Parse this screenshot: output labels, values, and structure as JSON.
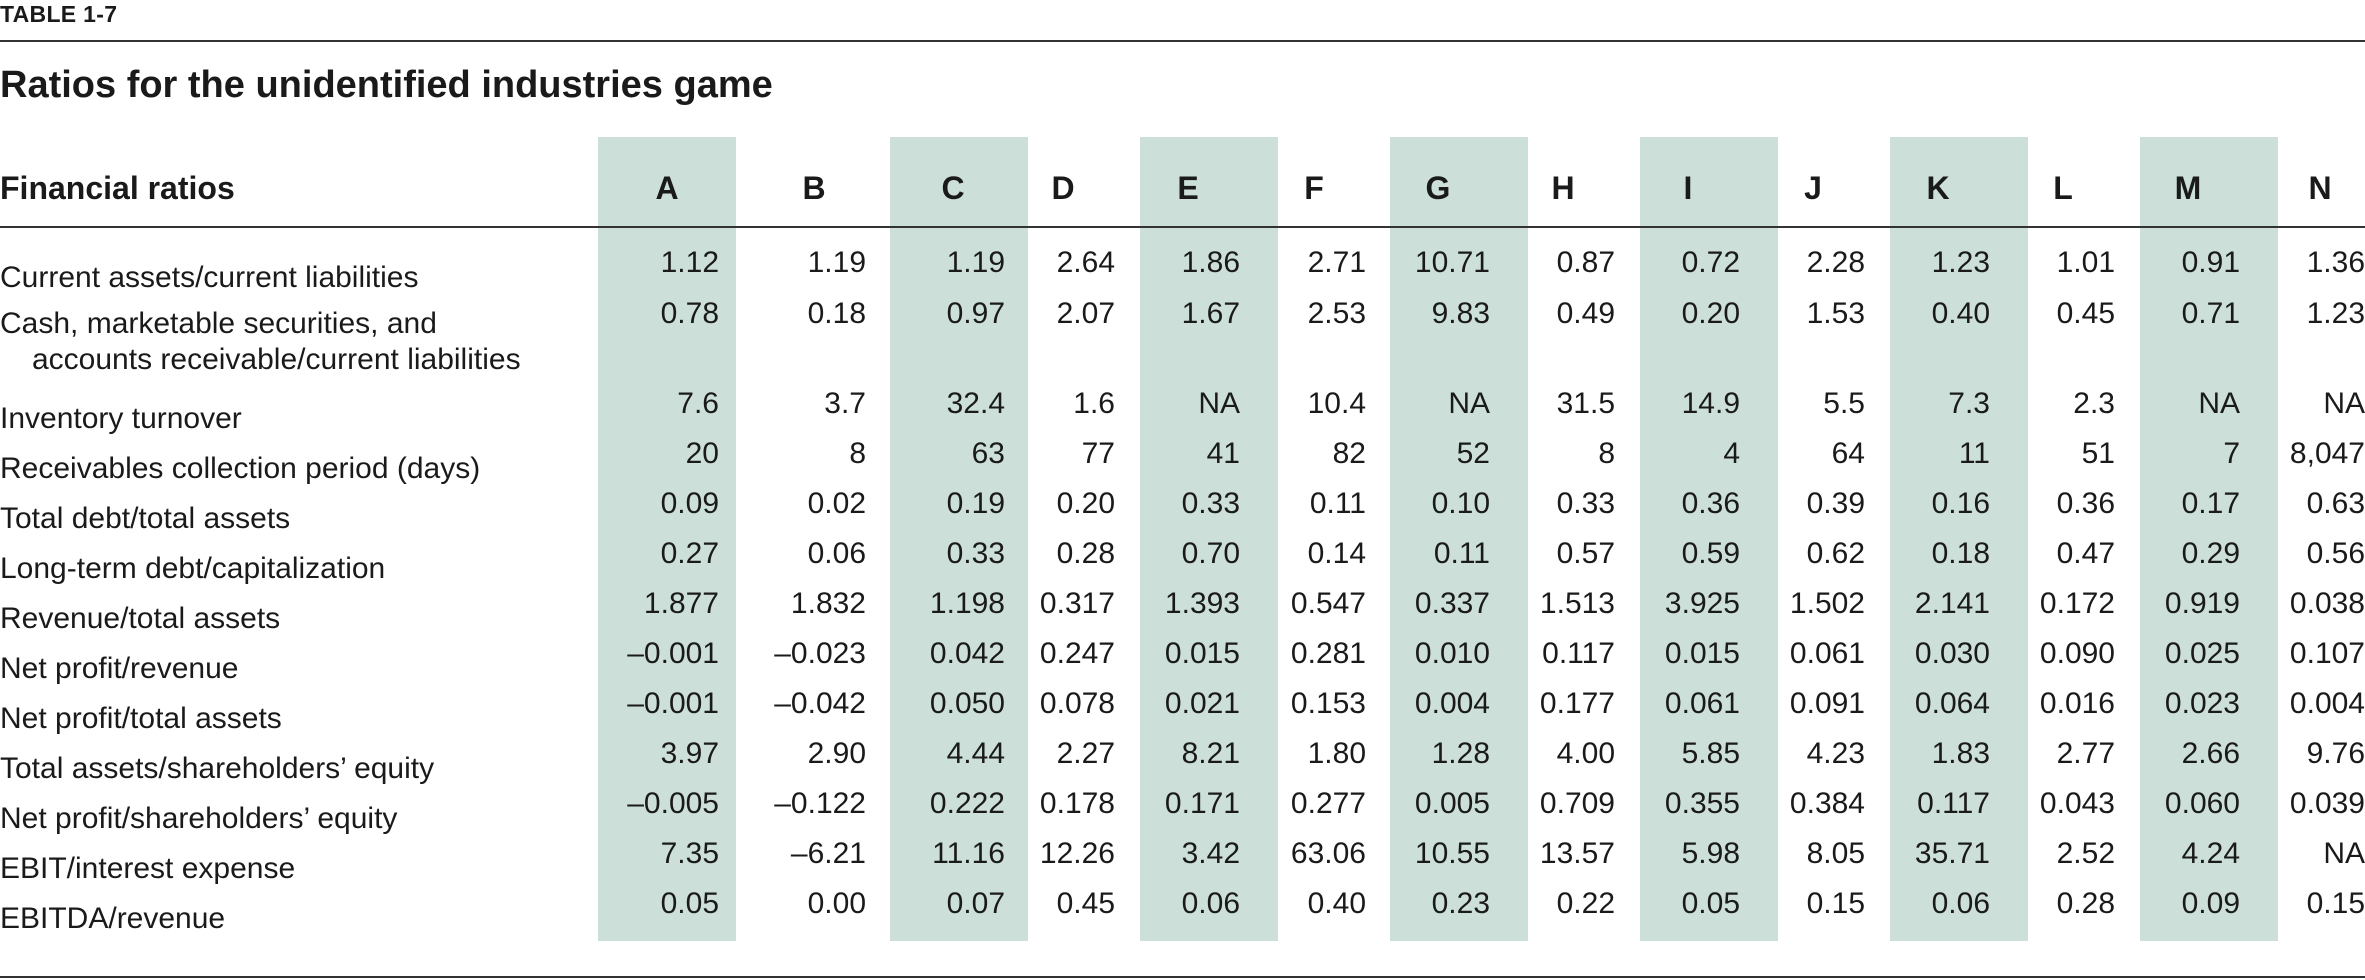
{
  "table_label": "TABLE 1-7",
  "title": "Ratios for the unidentified industries game",
  "header_label": "Financial ratios",
  "columns": [
    "A",
    "B",
    "C",
    "D",
    "E",
    "F",
    "G",
    "H",
    "I",
    "J",
    "K",
    "L",
    "M",
    "N"
  ],
  "shaded_columns": [
    "A",
    "C",
    "E",
    "G",
    "I",
    "K",
    "M"
  ],
  "shade_color": "#cce0d9",
  "rows": [
    {
      "label": [
        "Current assets/current liabilities"
      ],
      "values": [
        "1.12",
        "1.19",
        "1.19",
        "2.64",
        "1.86",
        "2.71",
        "10.71",
        "0.87",
        "0.72",
        "2.28",
        "1.23",
        "1.01",
        "0.91",
        "1.36"
      ]
    },
    {
      "label": [
        "Cash, marketable securities, and",
        "accounts receivable/current liabilities"
      ],
      "values": [
        "0.78",
        "0.18",
        "0.97",
        "2.07",
        "1.67",
        "2.53",
        "9.83",
        "0.49",
        "0.20",
        "1.53",
        "0.40",
        "0.45",
        "0.71",
        "1.23"
      ]
    },
    {
      "label": [
        "Inventory turnover"
      ],
      "values": [
        "7.6",
        "3.7",
        "32.4",
        "1.6",
        "NA",
        "10.4",
        "NA",
        "31.5",
        "14.9",
        "5.5",
        "7.3",
        "2.3",
        "NA",
        "NA"
      ]
    },
    {
      "label": [
        "Receivables collection period (days)"
      ],
      "values": [
        "20",
        "8",
        "63",
        "77",
        "41",
        "82",
        "52",
        "8",
        "4",
        "64",
        "11",
        "51",
        "7",
        "8,047"
      ]
    },
    {
      "label": [
        "Total debt/total assets"
      ],
      "values": [
        "0.09",
        "0.02",
        "0.19",
        "0.20",
        "0.33",
        "0.11",
        "0.10",
        "0.33",
        "0.36",
        "0.39",
        "0.16",
        "0.36",
        "0.17",
        "0.63"
      ]
    },
    {
      "label": [
        "Long-term debt/capitalization"
      ],
      "values": [
        "0.27",
        "0.06",
        "0.33",
        "0.28",
        "0.70",
        "0.14",
        "0.11",
        "0.57",
        "0.59",
        "0.62",
        "0.18",
        "0.47",
        "0.29",
        "0.56"
      ]
    },
    {
      "label": [
        "Revenue/total assets"
      ],
      "values": [
        "1.877",
        "1.832",
        "1.198",
        "0.317",
        "1.393",
        "0.547",
        "0.337",
        "1.513",
        "3.925",
        "1.502",
        "2.141",
        "0.172",
        "0.919",
        "0.038"
      ]
    },
    {
      "label": [
        "Net profit/revenue"
      ],
      "values": [
        "–0.001",
        "–0.023",
        "0.042",
        "0.247",
        "0.015",
        "0.281",
        "0.010",
        "0.117",
        "0.015",
        "0.061",
        "0.030",
        "0.090",
        "0.025",
        "0.107"
      ]
    },
    {
      "label": [
        "Net profit/total assets"
      ],
      "values": [
        "–0.001",
        "–0.042",
        "0.050",
        "0.078",
        "0.021",
        "0.153",
        "0.004",
        "0.177",
        "0.061",
        "0.091",
        "0.064",
        "0.016",
        "0.023",
        "0.004"
      ]
    },
    {
      "label": [
        "Total assets/shareholders’ equity"
      ],
      "values": [
        "3.97",
        "2.90",
        "4.44",
        "2.27",
        "8.21",
        "1.80",
        "1.28",
        "4.00",
        "5.85",
        "4.23",
        "1.83",
        "2.77",
        "2.66",
        "9.76"
      ]
    },
    {
      "label": [
        "Net profit/shareholders’ equity"
      ],
      "values": [
        "–0.005",
        "–0.122",
        "0.222",
        "0.178",
        "0.171",
        "0.277",
        "0.005",
        "0.709",
        "0.355",
        "0.384",
        "0.117",
        "0.043",
        "0.060",
        "0.039"
      ]
    },
    {
      "label": [
        "EBIT/interest expense"
      ],
      "values": [
        "7.35",
        "–6.21",
        "11.16",
        "12.26",
        "3.42",
        "63.06",
        "10.55",
        "13.57",
        "5.98",
        "8.05",
        "35.71",
        "2.52",
        "4.24",
        "NA"
      ]
    },
    {
      "label": [
        "EBITDA/revenue"
      ],
      "values": [
        "0.05",
        "0.00",
        "0.07",
        "0.45",
        "0.06",
        "0.40",
        "0.23",
        "0.22",
        "0.05",
        "0.15",
        "0.06",
        "0.28",
        "0.09",
        "0.15"
      ]
    }
  ]
}
